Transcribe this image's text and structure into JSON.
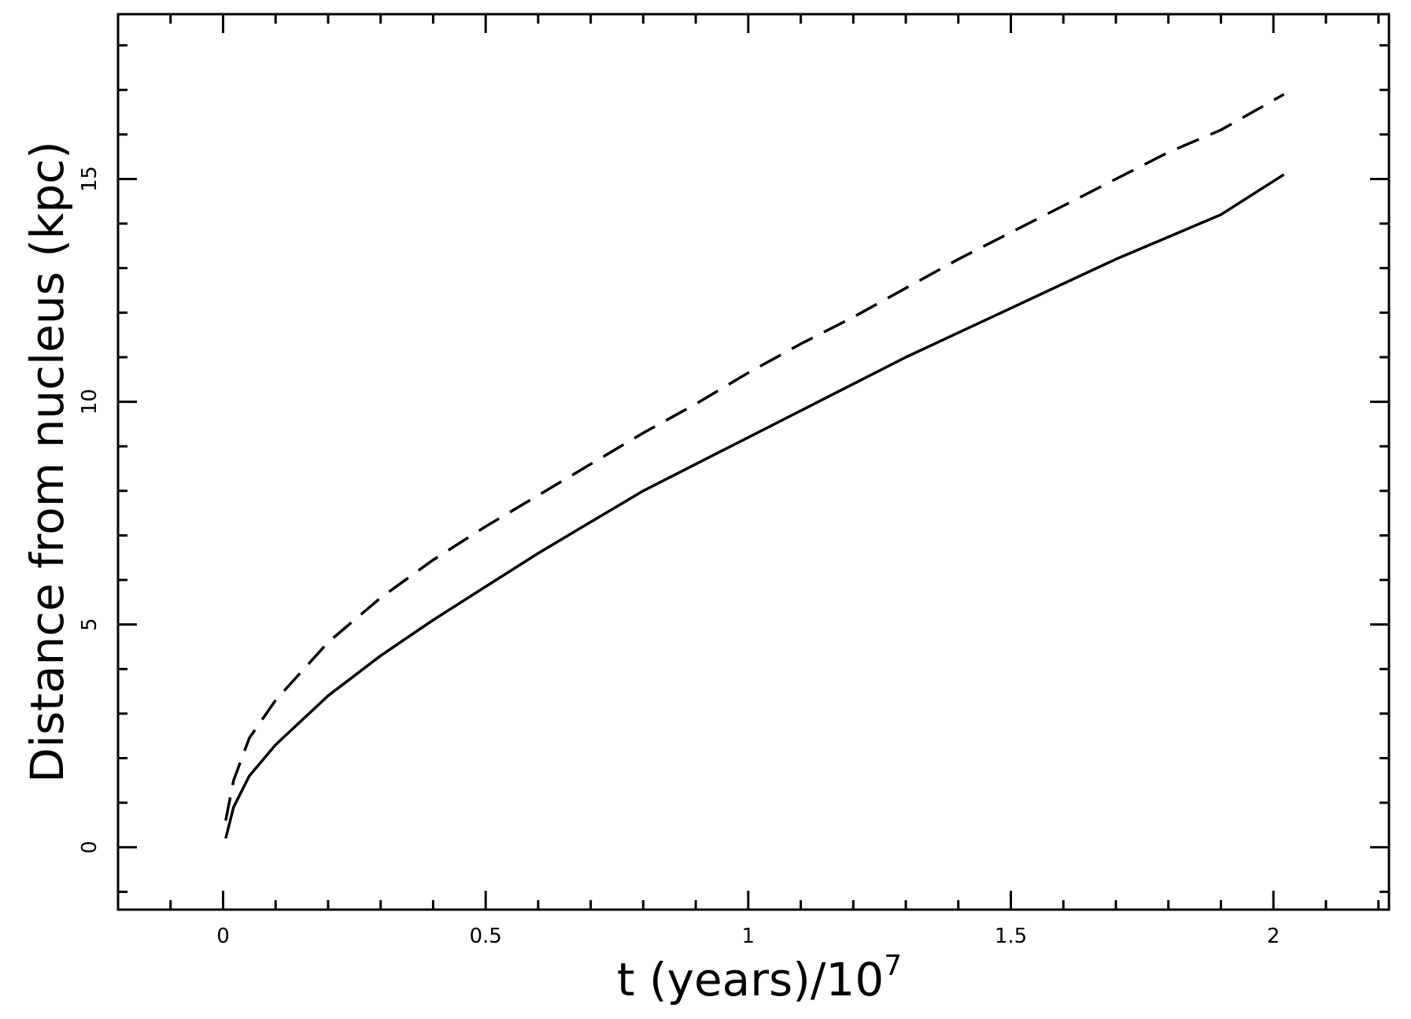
{
  "chart_data": {
    "type": "line",
    "xlabel": "t (years)/10",
    "xlabel_superscript": "7",
    "ylabel": "Distance from nucleus (kpc)",
    "xlim": [
      -0.2,
      2.22
    ],
    "ylim": [
      -1.4,
      18.7
    ],
    "x_ticks": [
      0,
      0.5,
      1,
      1.5,
      2
    ],
    "x_tick_labels": [
      "0",
      "0.5",
      "1",
      "1.5",
      "2"
    ],
    "y_ticks": [
      0,
      5,
      10,
      15
    ],
    "y_tick_labels": [
      "0",
      "5",
      "10",
      "15"
    ],
    "x_minor_step": 0.1,
    "y_minor_step": 1,
    "grid": false,
    "legend": "none",
    "series": [
      {
        "style": "solid",
        "color": "#000000",
        "x": [
          0.005,
          0.02,
          0.05,
          0.1,
          0.2,
          0.3,
          0.4,
          0.5,
          0.6,
          0.7,
          0.8,
          0.9,
          1.0,
          1.1,
          1.2,
          1.3,
          1.4,
          1.5,
          1.6,
          1.7,
          1.8,
          1.9,
          2.02
        ],
        "y": [
          0.2,
          0.9,
          1.6,
          2.3,
          3.4,
          4.3,
          5.1,
          5.85,
          6.6,
          7.3,
          8.0,
          8.6,
          9.2,
          9.8,
          10.4,
          11.0,
          11.55,
          12.1,
          12.65,
          13.2,
          13.7,
          14.2,
          15.1
        ]
      },
      {
        "style": "dashed",
        "color": "#000000",
        "x": [
          0.005,
          0.02,
          0.05,
          0.1,
          0.2,
          0.3,
          0.4,
          0.5,
          0.6,
          0.7,
          0.8,
          0.9,
          1.0,
          1.1,
          1.2,
          1.3,
          1.4,
          1.5,
          1.6,
          1.7,
          1.8,
          1.9,
          2.02
        ],
        "y": [
          0.6,
          1.5,
          2.45,
          3.3,
          4.6,
          5.6,
          6.45,
          7.2,
          7.9,
          8.6,
          9.3,
          9.95,
          10.65,
          11.3,
          11.9,
          12.55,
          13.2,
          13.8,
          14.4,
          15.0,
          15.6,
          16.1,
          16.9
        ]
      }
    ]
  }
}
